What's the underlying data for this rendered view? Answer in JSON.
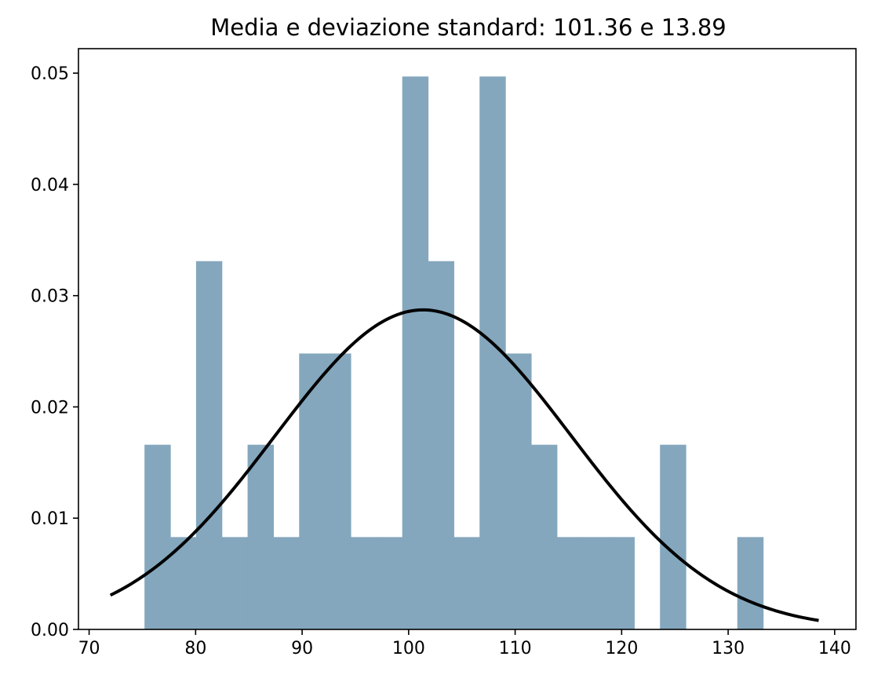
{
  "chart_data": {
    "type": "bar",
    "title": "Media e deviazione standard: 101.36 e 13.89",
    "xlabel": "",
    "ylabel": "",
    "xlim": [
      69,
      142
    ],
    "ylim": [
      0,
      0.0522
    ],
    "x_ticks": [
      70,
      80,
      90,
      100,
      110,
      120,
      130,
      140
    ],
    "y_ticks": [
      0.0,
      0.01,
      0.02,
      0.03,
      0.04,
      0.05
    ],
    "x_tick_labels": [
      "70",
      "80",
      "90",
      "100",
      "110",
      "120",
      "130",
      "140"
    ],
    "y_tick_labels": [
      "0.00",
      "0.01",
      "0.02",
      "0.03",
      "0.04",
      "0.05"
    ],
    "grid": false,
    "bins": {
      "start": 75.2,
      "width": 2.42,
      "densities": [
        0.0166,
        0.0083,
        0.0331,
        0.0083,
        0.0166,
        0.0083,
        0.0248,
        0.0248,
        0.0083,
        0.0083,
        0.0497,
        0.0331,
        0.0083,
        0.0497,
        0.0248,
        0.0166,
        0.0083,
        0.0083,
        0.0083,
        0.0,
        0.0166,
        0.0,
        0.0,
        0.0083
      ]
    },
    "histogram_color": "#84a7bd",
    "normal_curve": {
      "mean": 101.36,
      "std": 13.89,
      "x_range": [
        72.0,
        138.5
      ],
      "color": "#000000"
    }
  }
}
